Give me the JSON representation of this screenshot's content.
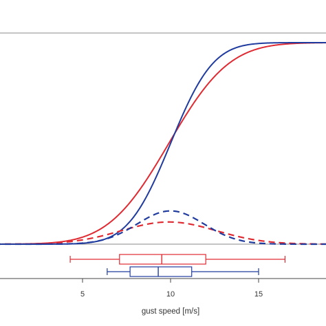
{
  "colors": {
    "red": "#e02a32",
    "blue": "#1f3b9e",
    "frame": "#555555",
    "axis": "#444444"
  },
  "chart_data": {
    "type": "line",
    "xlabel": "gust speed [m/s]",
    "ylabel": "",
    "title": "",
    "xlim": [
      0,
      19
    ],
    "ylim": [
      0,
      1
    ],
    "x_ticks": [
      5,
      10,
      15
    ],
    "grid": false,
    "legend": "none",
    "series": [
      {
        "color": "red",
        "style": "solid",
        "kind": "cdf",
        "mean": 9.9,
        "sd": 2.7
      },
      {
        "color": "blue",
        "style": "solid",
        "kind": "cdf",
        "mean": 10.0,
        "sd": 1.9
      },
      {
        "color": "red",
        "style": "dashed",
        "kind": "pdf",
        "mean": 9.9,
        "sd": 2.7,
        "peak": 0.11
      },
      {
        "color": "blue",
        "style": "dashed",
        "kind": "pdf",
        "mean": 10.0,
        "sd": 1.9,
        "peak": 0.165
      }
    ],
    "boxplots": [
      {
        "color": "red",
        "min": 4.3,
        "q1": 7.1,
        "median": 9.5,
        "q3": 12.0,
        "max": 16.5
      },
      {
        "color": "blue",
        "min": 6.4,
        "q1": 7.7,
        "median": 9.3,
        "q3": 11.2,
        "max": 15.0
      }
    ]
  }
}
